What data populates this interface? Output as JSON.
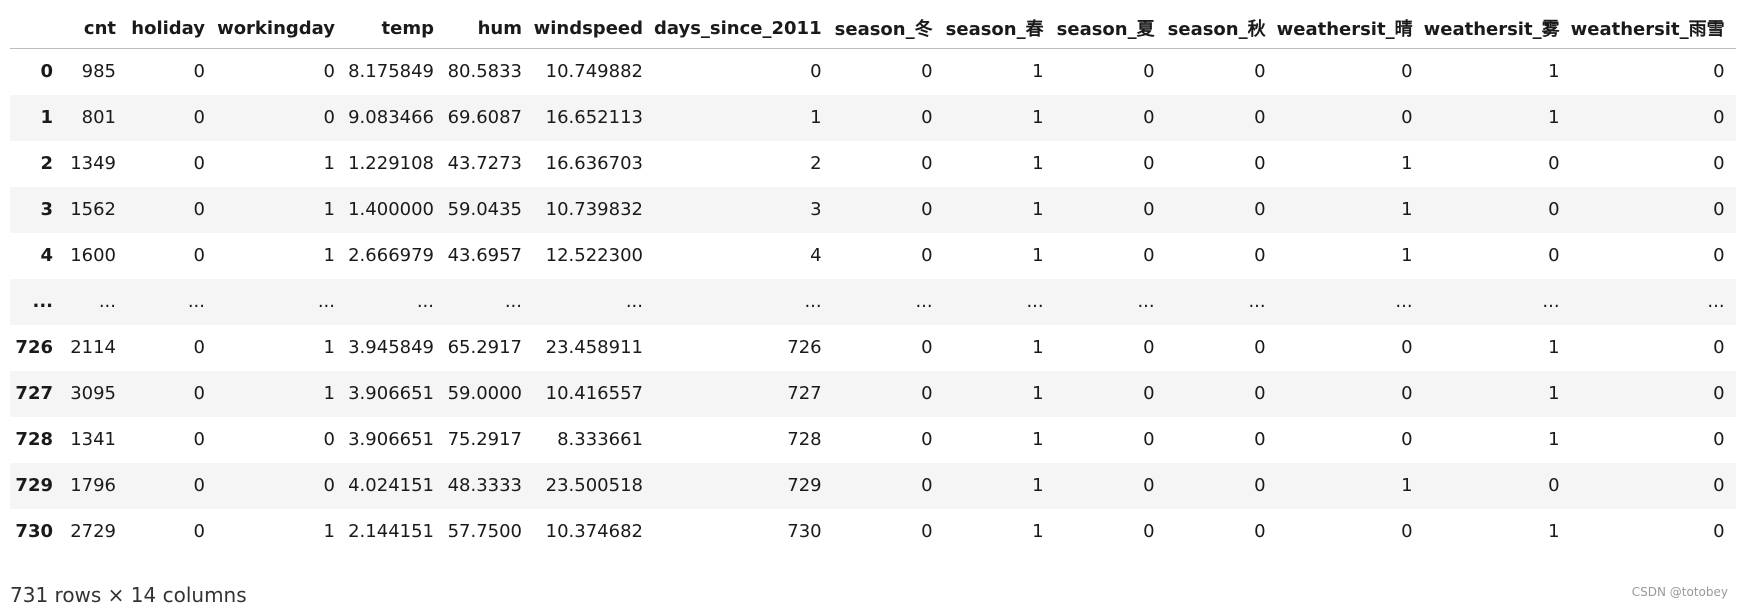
{
  "table": {
    "columns": [
      "cnt",
      "holiday",
      "workingday",
      "temp",
      "hum",
      "windspeed",
      "days_since_2011",
      "season_冬",
      "season_春",
      "season_夏",
      "season_秋",
      "weathersit_晴",
      "weathersit_雾",
      "weathersit_雨雪"
    ],
    "rows": [
      {
        "index": "0",
        "cells": [
          "985",
          "0",
          "0",
          "8.175849",
          "80.5833",
          "10.749882",
          "0",
          "0",
          "1",
          "0",
          "0",
          "0",
          "1",
          "0"
        ]
      },
      {
        "index": "1",
        "cells": [
          "801",
          "0",
          "0",
          "9.083466",
          "69.6087",
          "16.652113",
          "1",
          "0",
          "1",
          "0",
          "0",
          "0",
          "1",
          "0"
        ]
      },
      {
        "index": "2",
        "cells": [
          "1349",
          "0",
          "1",
          "1.229108",
          "43.7273",
          "16.636703",
          "2",
          "0",
          "1",
          "0",
          "0",
          "1",
          "0",
          "0"
        ]
      },
      {
        "index": "3",
        "cells": [
          "1562",
          "0",
          "1",
          "1.400000",
          "59.0435",
          "10.739832",
          "3",
          "0",
          "1",
          "0",
          "0",
          "1",
          "0",
          "0"
        ]
      },
      {
        "index": "4",
        "cells": [
          "1600",
          "0",
          "1",
          "2.666979",
          "43.6957",
          "12.522300",
          "4",
          "0",
          "1",
          "0",
          "0",
          "1",
          "0",
          "0"
        ]
      },
      {
        "index": "...",
        "cells": [
          "...",
          "...",
          "...",
          "...",
          "...",
          "...",
          "...",
          "...",
          "...",
          "...",
          "...",
          "...",
          "...",
          "..."
        ]
      },
      {
        "index": "726",
        "cells": [
          "2114",
          "0",
          "1",
          "3.945849",
          "65.2917",
          "23.458911",
          "726",
          "0",
          "1",
          "0",
          "0",
          "0",
          "1",
          "0"
        ]
      },
      {
        "index": "727",
        "cells": [
          "3095",
          "0",
          "1",
          "3.906651",
          "59.0000",
          "10.416557",
          "727",
          "0",
          "1",
          "0",
          "0",
          "0",
          "1",
          "0"
        ]
      },
      {
        "index": "728",
        "cells": [
          "1341",
          "0",
          "0",
          "3.906651",
          "75.2917",
          "8.333661",
          "728",
          "0",
          "1",
          "0",
          "0",
          "0",
          "1",
          "0"
        ]
      },
      {
        "index": "729",
        "cells": [
          "1796",
          "0",
          "0",
          "4.024151",
          "48.3333",
          "23.500518",
          "729",
          "0",
          "1",
          "0",
          "0",
          "1",
          "0",
          "0"
        ]
      },
      {
        "index": "730",
        "cells": [
          "2729",
          "0",
          "1",
          "2.144151",
          "57.7500",
          "10.374682",
          "730",
          "0",
          "1",
          "0",
          "0",
          "0",
          "1",
          "0"
        ]
      }
    ]
  },
  "footer": "731 rows × 14 columns",
  "watermark": "CSDN @totobey"
}
